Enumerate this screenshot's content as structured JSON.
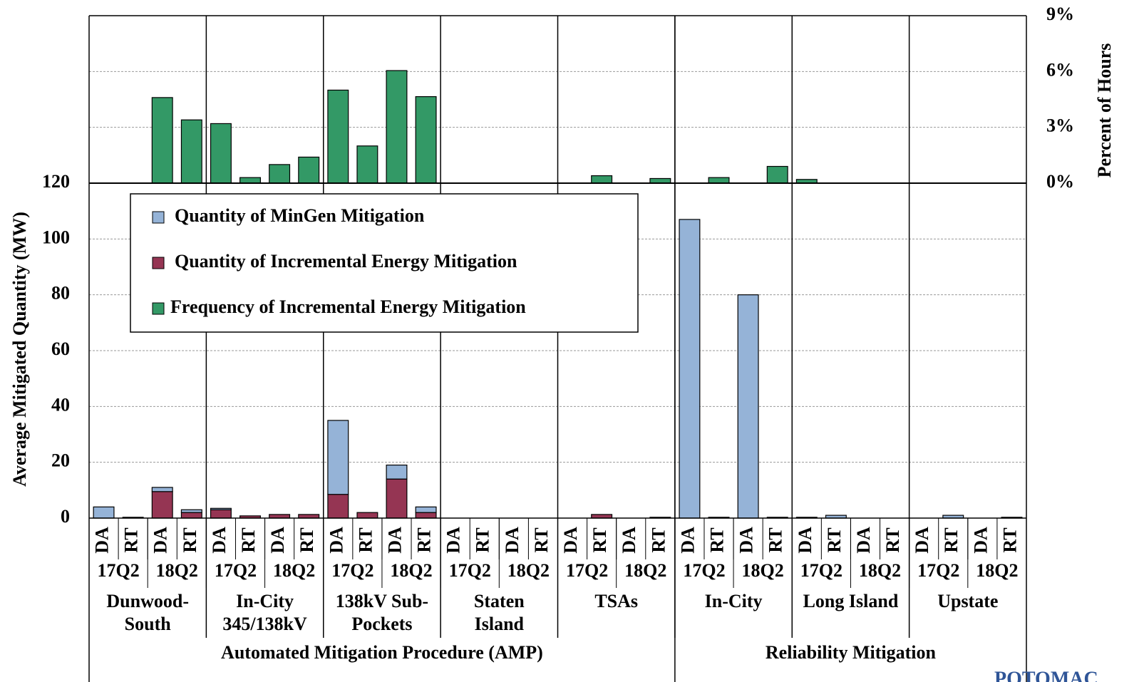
{
  "chart_data": {
    "type": "bar",
    "stacked": true,
    "y_label": "Average Mitigated Quantity (MW)",
    "y2_label": "Percent of Hours",
    "categories": [
      "DA",
      "RT",
      "DA",
      "RT",
      "DA",
      "RT",
      "DA",
      "RT",
      "DA",
      "RT",
      "DA",
      "RT",
      "DA",
      "RT",
      "DA",
      "RT",
      "DA",
      "RT",
      "DA",
      "RT",
      "DA",
      "RT",
      "DA",
      "RT",
      "DA",
      "RT",
      "DA",
      "RT",
      "DA",
      "RT",
      "DA",
      "RT"
    ],
    "groups": [
      {
        "name": "Automated Mitigation Procedure (AMP)",
        "regions": [
          {
            "name": [
              "Dunwood-",
              "South"
            ],
            "quarters": [
              "17Q2",
              "18Q2"
            ]
          },
          {
            "name": [
              "In-City",
              "345/138kV"
            ],
            "quarters": [
              "17Q2",
              "18Q2"
            ]
          },
          {
            "name": [
              "138kV Sub-",
              "Pockets"
            ],
            "quarters": [
              "17Q2",
              "18Q2"
            ]
          },
          {
            "name": [
              "Staten",
              "Island"
            ],
            "quarters": [
              "17Q2",
              "18Q2"
            ]
          },
          {
            "name": [
              "TSAs"
            ],
            "quarters": [
              "17Q2",
              "18Q2"
            ]
          }
        ]
      },
      {
        "name": "Reliability Mitigation",
        "regions": [
          {
            "name": [
              "In-City"
            ],
            "quarters": [
              "17Q2",
              "18Q2"
            ]
          },
          {
            "name": [
              "Long Island"
            ],
            "quarters": [
              "17Q2",
              "18Q2"
            ]
          },
          {
            "name": [
              "Upstate"
            ],
            "quarters": [
              "17Q2",
              "18Q2"
            ]
          }
        ]
      }
    ],
    "series": [
      {
        "name": "Quantity of MinGen Mitigation",
        "color": "#95b3d7",
        "axis": "y",
        "values": [
          4,
          0.3,
          1.5,
          1,
          0.5,
          0,
          0,
          0,
          26.5,
          0,
          5,
          2,
          0,
          0,
          0,
          0,
          0,
          0,
          0,
          0,
          107,
          0.3,
          80,
          0.3,
          0.3,
          1,
          0,
          0,
          0,
          1,
          0,
          0.3
        ]
      },
      {
        "name": "Quantity of Incremental Energy Mitigation",
        "color": "#953553",
        "axis": "y",
        "values": [
          0,
          0,
          9.5,
          2,
          3,
          0.8,
          1.3,
          1.3,
          8.5,
          2,
          14,
          2,
          0,
          0,
          0,
          0,
          0,
          1.3,
          0,
          0.3,
          0,
          0,
          0,
          0,
          0,
          0,
          0,
          0,
          0,
          0,
          0,
          0
        ]
      },
      {
        "name": "Frequency of Incremental Energy Mitigation",
        "color": "#339966",
        "axis": "y2",
        "values": [
          0,
          0,
          4.6,
          3.4,
          3.2,
          0.3,
          1.0,
          1.4,
          5.0,
          2.0,
          6.05,
          4.65,
          0,
          0,
          0,
          0,
          0,
          0.4,
          0,
          0.25,
          0,
          0.3,
          0,
          0.9,
          0.2,
          0,
          0,
          0,
          0,
          0,
          0,
          0
        ]
      }
    ],
    "ylim": [
      0,
      120
    ],
    "yticks": [
      0,
      20,
      40,
      60,
      80,
      100,
      120
    ],
    "y2lim": [
      0,
      9
    ],
    "y2ticks": [
      {
        "value": 0,
        "label": "0%"
      },
      {
        "value": 3,
        "label": "3%"
      },
      {
        "value": 6,
        "label": "6%"
      },
      {
        "value": 9,
        "label": "9%"
      }
    ],
    "grid": true,
    "legend": "upper left",
    "logo": "POTOMAC"
  }
}
